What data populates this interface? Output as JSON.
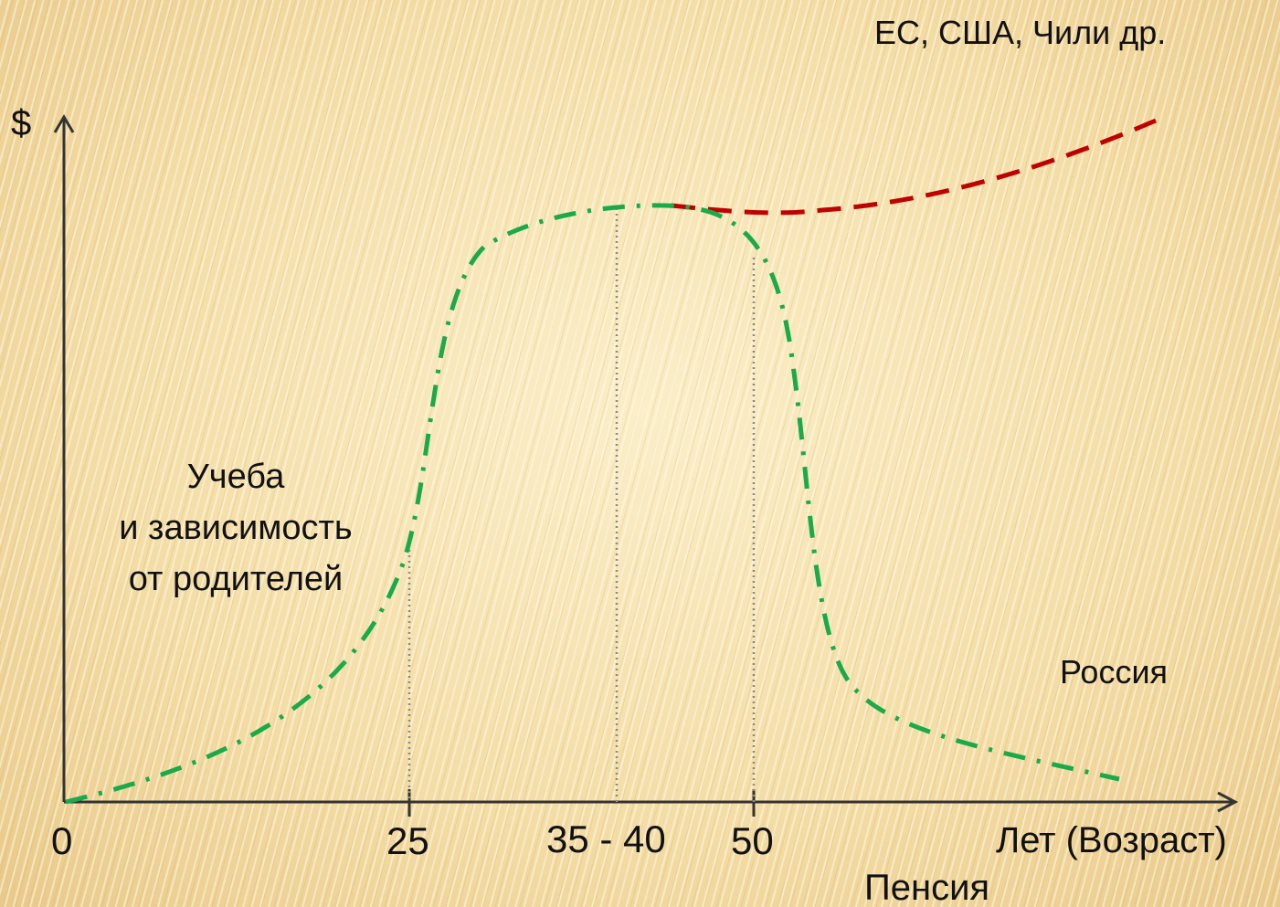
{
  "y_axis": {
    "label": "$"
  },
  "x_axis": {
    "label": "Лет (Возраст)",
    "ticks": [
      "0",
      "25",
      "35 - 40",
      "50"
    ]
  },
  "annotations": {
    "pension": "Пенсия",
    "dependency_lines": [
      "Учеба",
      "и зависимость",
      "от родителей"
    ]
  },
  "series": {
    "russia": {
      "name": "Россия",
      "color": "#1aaa4a"
    },
    "developed": {
      "name": "ЕС, США, Чили др.",
      "color": "#c00000"
    }
  }
}
